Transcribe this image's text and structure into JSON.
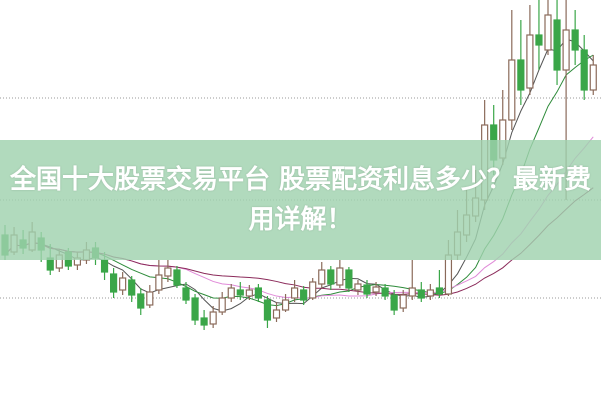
{
  "article": {
    "title": "全国十大股票交易平台 股票配资利息多少？最新费用详解！"
  },
  "colors": {
    "up_candle": "#8a6a5a",
    "down_candle": "#3aa648",
    "banner": "#a0d2af",
    "ma_lines": [
      "#555555",
      "#2e8b3a",
      "#e08ad8",
      "#8b2a5a"
    ]
  },
  "candles": [
    [
      16.5,
      14.5,
      17.5,
      14.0
    ],
    [
      14.8,
      16.5,
      17.3,
      14.5
    ],
    [
      16.0,
      15.2,
      17.0,
      14.6
    ],
    [
      15.0,
      16.8,
      17.8,
      14.8
    ],
    [
      16.2,
      15.0,
      16.8,
      13.8
    ],
    [
      14.2,
      13.0,
      15.6,
      12.5
    ],
    [
      13.2,
      14.5,
      15.0,
      12.8
    ],
    [
      14.8,
      13.4,
      15.2,
      13.0
    ],
    [
      13.5,
      14.2,
      14.8,
      13.0
    ],
    [
      14.0,
      15.0,
      15.8,
      13.6
    ],
    [
      15.2,
      14.2,
      15.8,
      13.5
    ],
    [
      14.0,
      12.8,
      14.8,
      12.0
    ],
    [
      12.6,
      10.8,
      13.2,
      10.2
    ],
    [
      11.0,
      12.2,
      12.8,
      10.5
    ],
    [
      12.0,
      10.5,
      12.4,
      9.8
    ],
    [
      10.6,
      9.2,
      11.2,
      8.5
    ],
    [
      9.5,
      10.8,
      11.5,
      9.2
    ],
    [
      11.0,
      12.5,
      14.0,
      10.6
    ],
    [
      12.4,
      13.2,
      14.0,
      11.8
    ],
    [
      13.0,
      11.5,
      13.4,
      11.2
    ],
    [
      11.2,
      10.0,
      11.8,
      9.6
    ],
    [
      10.2,
      8.0,
      10.6,
      7.5
    ],
    [
      8.2,
      7.5,
      9.0,
      7.0
    ],
    [
      7.6,
      8.8,
      9.4,
      7.2
    ],
    [
      8.8,
      10.2,
      10.8,
      8.5
    ],
    [
      10.2,
      11.2,
      11.6,
      9.8
    ],
    [
      11.0,
      10.5,
      11.8,
      10.0
    ],
    [
      10.4,
      11.0,
      11.5,
      10.0
    ],
    [
      11.2,
      10.2,
      11.6,
      9.8
    ],
    [
      10.0,
      8.0,
      10.4,
      7.2
    ],
    [
      8.2,
      9.0,
      9.8,
      7.8
    ],
    [
      9.0,
      10.0,
      10.6,
      8.8
    ],
    [
      10.2,
      11.2,
      12.0,
      9.8
    ],
    [
      11.0,
      10.0,
      11.4,
      9.5
    ],
    [
      10.2,
      11.8,
      12.2,
      10.0
    ],
    [
      11.6,
      13.0,
      13.8,
      11.2
    ],
    [
      13.0,
      11.6,
      13.4,
      11.0
    ],
    [
      11.5,
      13.2,
      14.0,
      11.2
    ],
    [
      13.0,
      11.2,
      13.3,
      10.8
    ],
    [
      11.0,
      11.6,
      12.0,
      10.5
    ],
    [
      11.5,
      10.6,
      12.0,
      10.2
    ],
    [
      10.8,
      11.3,
      11.8,
      10.4
    ],
    [
      11.2,
      10.4,
      11.6,
      10.0
    ],
    [
      10.5,
      9.0,
      11.0,
      8.5
    ],
    [
      9.2,
      10.5,
      11.0,
      8.8
    ],
    [
      10.4,
      11.2,
      14.0,
      10.0
    ],
    [
      11.0,
      10.2,
      11.8,
      9.8
    ],
    [
      10.4,
      11.0,
      11.6,
      10.0
    ],
    [
      11.2,
      10.6,
      13.0,
      10.2
    ],
    [
      10.6,
      14.5,
      16.0,
      10.4
    ],
    [
      14.5,
      16.8,
      19.0,
      14.0
    ],
    [
      16.5,
      18.5,
      21.0,
      15.8
    ],
    [
      18.4,
      20.2,
      23.0,
      17.8
    ],
    [
      20.0,
      27.5,
      30.0,
      19.0
    ],
    [
      27.5,
      24.0,
      29.5,
      22.5
    ],
    [
      24.2,
      28.0,
      31.0,
      23.5
    ],
    [
      28.0,
      34.0,
      39.0,
      27.0
    ],
    [
      34.0,
      31.0,
      38.0,
      29.5
    ],
    [
      31.2,
      36.5,
      39.5,
      30.5
    ],
    [
      36.5,
      35.5,
      40.0,
      33.0
    ],
    [
      35.0,
      38.5,
      40.0,
      34.5
    ],
    [
      38.0,
      33.0,
      40.0,
      31.5
    ],
    [
      33.0,
      37.0,
      40.0,
      20.0
    ],
    [
      37.0,
      35.0,
      39.0,
      33.5
    ],
    [
      35.0,
      31.0,
      36.5,
      30.0
    ],
    [
      31.0,
      33.5,
      34.5,
      30.5
    ]
  ]
}
